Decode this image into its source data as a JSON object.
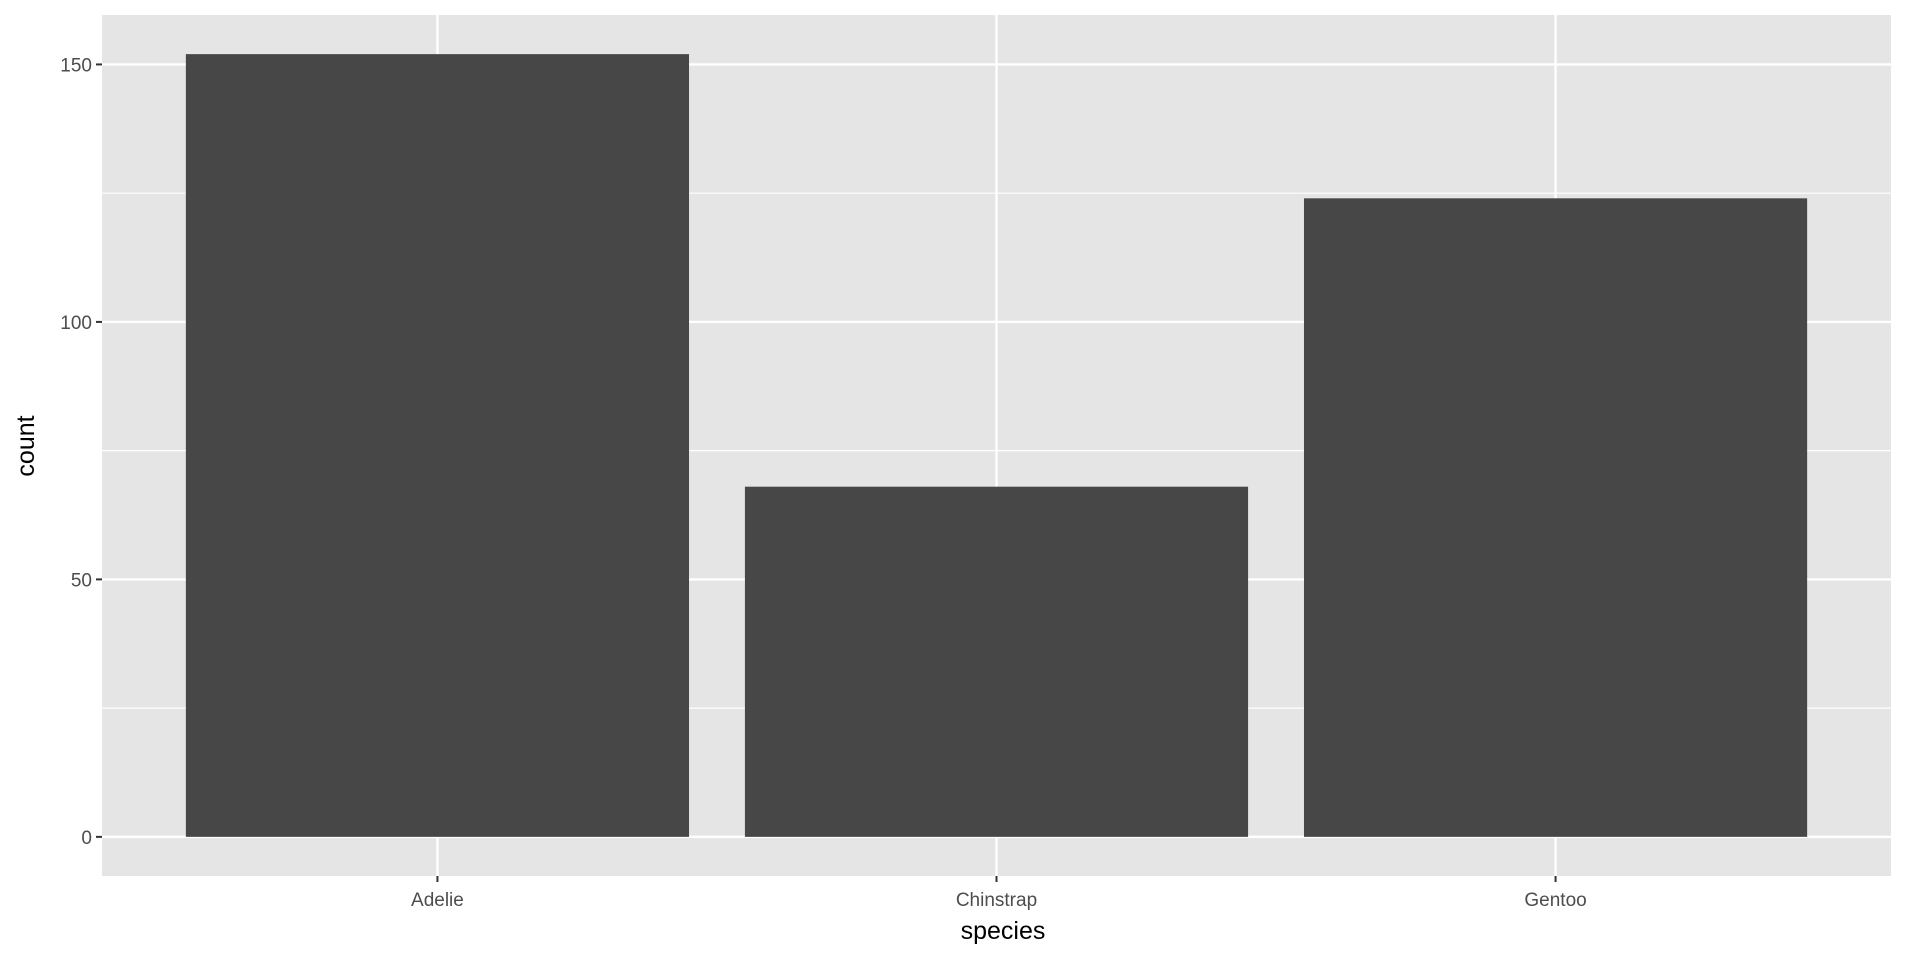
{
  "chart_data": {
    "type": "bar",
    "categories": [
      "Adelie",
      "Chinstrap",
      "Gentoo"
    ],
    "values": [
      152,
      68,
      124
    ],
    "xlabel": "species",
    "ylabel": "count",
    "ylim": [
      -7.6,
      159.6
    ],
    "yticks": [
      0,
      50,
      100,
      150
    ],
    "yminor": [
      25,
      75,
      125
    ],
    "grid": true,
    "colors": {
      "bar": "#474747",
      "panel": "#e5e5e5",
      "grid": "#ffffff",
      "tick_text": "#4d4d4d"
    }
  }
}
